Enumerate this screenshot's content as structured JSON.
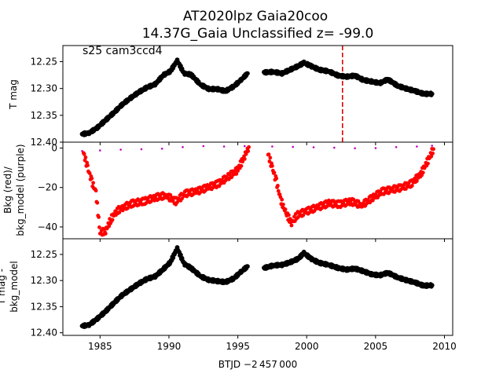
{
  "figure": {
    "title_line1": "AT2020lpz  Gaia20coo",
    "title_line2": "14.37G_Gaia Unclassified z= -99.0",
    "annotation": "s25 cam3ccd4",
    "xlabel": "BTJD −2 457 000"
  },
  "chart_data": [
    {
      "type": "scatter",
      "panel": "top",
      "ylabel": "T mag",
      "ylim": [
        12.4,
        12.22
      ],
      "yticks": [
        12.25,
        12.3,
        12.35,
        12.4
      ],
      "ytick_labels": [
        "12.25",
        "12.30",
        "12.35",
        "12.40"
      ],
      "xlim": [
        1982.3,
        2010.6
      ],
      "xticks": [
        1985,
        1990,
        1995,
        2000,
        2005,
        2010
      ],
      "xtick_labels": [
        "1985",
        "1990",
        "1995",
        "2000",
        "2005",
        "2010"
      ],
      "vline": {
        "x": 2002.6,
        "color": "#e00000",
        "style": "dashed"
      },
      "series": [
        {
          "color": "#000000",
          "x": [
            1983.7,
            1984.2,
            1984.8,
            1985.4,
            1986.0,
            1986.6,
            1987.2,
            1987.8,
            1988.4,
            1989.0,
            1989.6,
            1990.1,
            1990.6,
            1991.1,
            1991.6,
            1992.3,
            1992.9,
            1993.5,
            1994.1,
            1994.7,
            1995.2,
            1995.7,
            1996.9,
            1997.6,
            1998.2,
            1998.8,
            1999.4,
            1999.8,
            2000.3,
            2000.9,
            2001.6,
            2002.3,
            2002.9,
            2003.5,
            2004.1,
            2004.7,
            2005.3,
            2005.9,
            2006.6,
            2007.2,
            2007.9,
            2008.5,
            2009.1
          ],
          "y": [
            12.385,
            12.383,
            12.373,
            12.359,
            12.345,
            12.33,
            12.318,
            12.307,
            12.298,
            12.292,
            12.275,
            12.268,
            12.248,
            12.272,
            12.274,
            12.293,
            12.301,
            12.301,
            12.305,
            12.296,
            12.285,
            12.272,
            12.27,
            12.269,
            12.272,
            12.265,
            12.258,
            12.252,
            12.258,
            12.265,
            12.268,
            12.276,
            12.278,
            12.276,
            12.284,
            12.287,
            12.29,
            12.283,
            12.295,
            12.3,
            12.305,
            12.31,
            12.31
          ]
        }
      ]
    },
    {
      "type": "scatter",
      "panel": "middle",
      "ylabel_line1": "Bkg (red)/",
      "ylabel_line2": "bkg_model (purple)",
      "ylim": [
        -46,
        3
      ],
      "yticks": [
        0,
        -20,
        -40
      ],
      "ytick_labels": [
        "0",
        "−20",
        "−40"
      ],
      "xlim": [
        1982.3,
        2010.6
      ],
      "series": [
        {
          "color": "#bf00bf",
          "x": [
            1983.7,
            1985.0,
            1986.5,
            1988.0,
            1989.5,
            1991.0,
            1992.5,
            1994.0,
            1995.5,
            1997.5,
            1999.0,
            2000.5,
            2002.0,
            2003.5,
            2005.0,
            2006.5,
            2008.0,
            2009.1
          ],
          "y": [
            -1.5,
            -1.2,
            -0.8,
            -0.6,
            -0.3,
            0.5,
            1.0,
            0.8,
            1.0,
            0.8,
            0.6,
            0.4,
            0.2,
            -0.1,
            0.0,
            0.5,
            0.8,
            1.2
          ]
        },
        {
          "color": "#ff0000",
          "x": [
            1983.8,
            1984.1,
            1984.4,
            1984.7,
            1985.0,
            1985.4,
            1985.8,
            1986.2,
            1986.7,
            1987.4,
            1988.2,
            1989.0,
            1989.8,
            1990.5,
            1991.2,
            1992.0,
            1992.8,
            1993.6,
            1994.4,
            1995.0,
            1995.5,
            1995.8,
            1997.2,
            1997.5,
            1997.8,
            1998.1,
            1998.5,
            1998.9,
            1999.3,
            2000.0,
            2000.8,
            2001.6,
            2002.4,
            2003.2,
            2004.0,
            2004.8,
            2005.5,
            2006.2,
            2006.9,
            2007.6,
            2008.3,
            2008.9,
            2009.2
          ],
          "y": [
            -2.5,
            -10.0,
            -17.0,
            -22.5,
            -43.0,
            -42.0,
            -36.0,
            -32.0,
            -30.0,
            -28.0,
            -27.0,
            -25.0,
            -24.0,
            -27.0,
            -23.0,
            -22.0,
            -20.0,
            -18.0,
            -14.0,
            -11.0,
            -4.0,
            0.5,
            -3.0,
            -10.0,
            -17.0,
            -26.0,
            -33.0,
            -38.0,
            -34.0,
            -32.0,
            -30.0,
            -28.0,
            -28.5,
            -27.0,
            -29.0,
            -25.0,
            -22.0,
            -21.0,
            -20.0,
            -18.0,
            -13.0,
            -5.0,
            -0.5
          ]
        }
      ]
    },
    {
      "type": "scatter",
      "panel": "bottom",
      "ylabel_line1": "T mag -",
      "ylabel_line2": "bkg_model",
      "ylim": [
        12.405,
        12.22
      ],
      "yticks": [
        12.25,
        12.3,
        12.35,
        12.4
      ],
      "ytick_labels": [
        "12.25",
        "12.30",
        "12.35",
        "12.40"
      ],
      "xlim": [
        1982.3,
        2010.6
      ],
      "series": [
        {
          "color": "#000000",
          "x": [
            1983.7,
            1984.2,
            1984.8,
            1985.4,
            1986.0,
            1986.6,
            1987.2,
            1987.8,
            1988.4,
            1989.0,
            1989.6,
            1990.1,
            1990.6,
            1991.1,
            1991.6,
            1992.3,
            1992.9,
            1993.5,
            1994.1,
            1994.7,
            1995.2,
            1995.7,
            1996.9,
            1997.6,
            1998.2,
            1998.8,
            1999.4,
            1999.8,
            2000.3,
            2000.9,
            2001.6,
            2002.3,
            2002.9,
            2003.5,
            2004.1,
            2004.7,
            2005.3,
            2005.9,
            2006.6,
            2007.2,
            2007.9,
            2008.5,
            2009.1
          ],
          "y": [
            12.387,
            12.385,
            12.373,
            12.359,
            12.343,
            12.328,
            12.317,
            12.306,
            12.297,
            12.292,
            12.278,
            12.265,
            12.238,
            12.268,
            12.276,
            12.292,
            12.299,
            12.301,
            12.303,
            12.296,
            12.284,
            12.273,
            12.276,
            12.271,
            12.27,
            12.265,
            12.258,
            12.247,
            12.258,
            12.266,
            12.27,
            12.276,
            12.279,
            12.277,
            12.282,
            12.288,
            12.29,
            12.285,
            12.294,
            12.299,
            12.304,
            12.31,
            12.309
          ]
        }
      ]
    }
  ]
}
